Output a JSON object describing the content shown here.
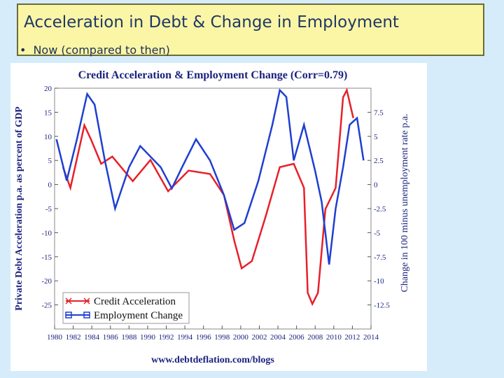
{
  "slide": {
    "title": "Acceleration in Debt & Change in Employment",
    "bullet": "Now (compared to then)"
  },
  "chart_data": {
    "type": "line",
    "title": "Credit Acceleration & Employment Change (Corr=0.79)",
    "ylabel": "Private Debt Acceleration p.a. as percent of GDP",
    "y2label": "Change in 100 minus unemployment rate p.a.",
    "footer": "www.debtdeflation.com/blogs",
    "xlim": [
      1980,
      2014
    ],
    "xticks": [
      1980,
      1982,
      1984,
      1986,
      1988,
      1990,
      1992,
      1994,
      1996,
      1998,
      2000,
      2002,
      2004,
      2006,
      2008,
      2010,
      2012,
      2014
    ],
    "ylim": [
      -30,
      20
    ],
    "yticks": [
      -25,
      -20,
      -15,
      -10,
      -5,
      0,
      5,
      10,
      15,
      20
    ],
    "y2lim": [
      -15,
      10
    ],
    "y2ticks": [
      -12.5,
      -10,
      -7.5,
      -5,
      -2.5,
      0,
      2.5,
      5,
      7.5
    ],
    "legend": "lower left",
    "series": [
      {
        "name": "Credit Acceleration",
        "color": "#e8202a",
        "x": [
          1980.9,
          1981.7,
          1983.2,
          1983.9,
          1985,
          1986.2,
          1988.4,
          1990.3,
          1992.2,
          1994.4,
          1996.7,
          1998.2,
          1999.3,
          2000.1,
          2001.2,
          2002.7,
          2004.2,
          2005.7,
          2006.8,
          2007.2,
          2007.7,
          2008.3,
          2009.1,
          2010.2,
          2011,
          2011.4,
          2012.1
        ],
        "values": [
          3.6,
          -0.7,
          12.3,
          9.4,
          4.3,
          5.8,
          0.7,
          5.1,
          -1.4,
          2.9,
          2.2,
          -2.2,
          -11.6,
          -17.4,
          -15.9,
          -6.5,
          3.6,
          4.3,
          -0.7,
          -22.5,
          -24.8,
          -22.5,
          -5.1,
          -0.7,
          18.1,
          19.6,
          13.8
        ]
      },
      {
        "name": "Employment Change",
        "color": "#1f3fd0",
        "axis": "y2",
        "x": [
          1980.2,
          1981.3,
          1982.4,
          1983.5,
          1984.3,
          1985.4,
          1986.5,
          1988,
          1989.2,
          1991.4,
          1992.6,
          1993.7,
          1995.2,
          1996.7,
          1998.2,
          1999.3,
          2000.4,
          2001.9,
          2003.4,
          2004.2,
          2004.9,
          2005.7,
          2006.8,
          2008,
          2008.7,
          2009.5,
          2010.2,
          2011,
          2011.7,
          2012.5,
          2013.2
        ],
        "values": [
          4.7,
          0.4,
          4.7,
          9.4,
          8.3,
          2.5,
          -2.5,
          1.8,
          4,
          1.8,
          -0.4,
          1.8,
          4.7,
          2.5,
          -1.1,
          -4.7,
          -4,
          0.4,
          6.2,
          9.8,
          9.1,
          2.5,
          6.2,
          1.4,
          -1.8,
          -8.3,
          -2.5,
          1.8,
          6.2,
          6.9,
          2.5
        ]
      }
    ]
  }
}
